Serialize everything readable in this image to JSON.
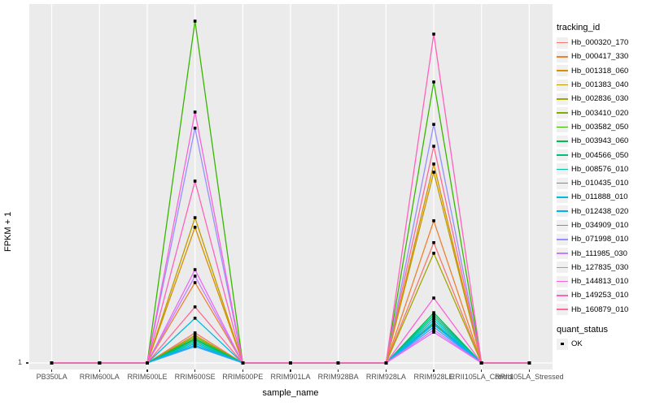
{
  "chart_data": {
    "type": "line",
    "title": "",
    "xlabel": "sample_name",
    "ylabel": "FPKM + 1",
    "y_ticks": [
      "1"
    ],
    "y_scale_note": "axis shows only tick '1' at baseline; series values are relative peak heights where 0 = baseline (FPKM+1 = 1) and 1 = tallest peak",
    "legend_position": "right",
    "grid": "white major gridlines on gray panel",
    "point_style": "black filled square at every sample (quant_status = OK)",
    "categories": [
      "PB350LA",
      "RRIM600LA",
      "RRIM600LE",
      "RRIM600SE",
      "RRIM600PE",
      "RRIM901LA",
      "RRIM928BA",
      "RRIM928LA",
      "RRIM928LE",
      "RRII105LA_Control",
      "RRII105LA_Stressed"
    ],
    "series": [
      {
        "name": "Hb_000320_170",
        "color": "#F8766D",
        "values": [
          0,
          0,
          0,
          0.088,
          0,
          0,
          0,
          0,
          0.352,
          0,
          0
        ]
      },
      {
        "name": "Hb_000417_330",
        "color": "#EA8331",
        "values": [
          0,
          0,
          0,
          0.235,
          0,
          0,
          0,
          0,
          0.416,
          0,
          0
        ]
      },
      {
        "name": "Hb_001318_060",
        "color": "#D89000",
        "values": [
          0,
          0,
          0,
          0.397,
          0,
          0,
          0,
          0,
          0.582,
          0,
          0
        ]
      },
      {
        "name": "Hb_001383_040",
        "color": "#C09B00",
        "values": [
          0,
          0,
          0,
          0.425,
          0,
          0,
          0,
          0,
          0.558,
          0,
          0
        ]
      },
      {
        "name": "Hb_002836_030",
        "color": "#A3A500",
        "values": [
          0,
          0,
          0,
          0.081,
          0,
          0,
          0,
          0,
          0.321,
          0,
          0
        ]
      },
      {
        "name": "Hb_003410_020",
        "color": "#7CAE00",
        "values": [
          0,
          0,
          0,
          0.076,
          0,
          0,
          0,
          0,
          0.116,
          0,
          0
        ]
      },
      {
        "name": "Hb_003582_050",
        "color": "#39B600",
        "values": [
          0,
          0,
          0,
          1.0,
          0,
          0,
          0,
          0,
          0.822,
          0,
          0
        ]
      },
      {
        "name": "Hb_003943_060",
        "color": "#00BB4E",
        "values": [
          0,
          0,
          0,
          0.071,
          0,
          0,
          0,
          0,
          0.147,
          0,
          0
        ]
      },
      {
        "name": "Hb_004566_050",
        "color": "#00BF7D",
        "values": [
          0,
          0,
          0,
          0.067,
          0,
          0,
          0,
          0,
          0.14,
          0,
          0
        ]
      },
      {
        "name": "Hb_008576_010",
        "color": "#00C1A3",
        "values": [
          0,
          0,
          0,
          0.062,
          0,
          0,
          0,
          0,
          0.133,
          0,
          0
        ]
      },
      {
        "name": "Hb_010435_010",
        "color": "#00BFC4",
        "values": [
          0,
          0,
          0,
          0.057,
          0,
          0,
          0,
          0,
          0.126,
          0,
          0
        ]
      },
      {
        "name": "Hb_011888_010",
        "color": "#00BAE0",
        "values": [
          0,
          0,
          0,
          0.131,
          0,
          0,
          0,
          0,
          0.119,
          0,
          0
        ]
      },
      {
        "name": "Hb_012438_020",
        "color": "#00B0F6",
        "values": [
          0,
          0,
          0,
          0.052,
          0,
          0,
          0,
          0,
          0.112,
          0,
          0
        ]
      },
      {
        "name": "Hb_034909_010",
        "color": "#35A2FF",
        "values": [
          0,
          0,
          0,
          0.048,
          0,
          0,
          0,
          0,
          0.105,
          0,
          0
        ]
      },
      {
        "name": "Hb_071998_010",
        "color": "#9590FF",
        "values": [
          0,
          0,
          0,
          0.687,
          0,
          0,
          0,
          0,
          0.698,
          0,
          0
        ]
      },
      {
        "name": "Hb_111985_030",
        "color": "#C77CFF",
        "values": [
          0,
          0,
          0,
          0.254,
          0,
          0,
          0,
          0,
          0.097,
          0,
          0
        ]
      },
      {
        "name": "Hb_127835_030",
        "color": "#E76BF3",
        "values": [
          0,
          0,
          0,
          0.273,
          0,
          0,
          0,
          0,
          0.09,
          0,
          0
        ]
      },
      {
        "name": "Hb_144813_010",
        "color": "#FA62DB",
        "values": [
          0,
          0,
          0,
          0.734,
          0,
          0,
          0,
          0,
          0.19,
          0,
          0
        ]
      },
      {
        "name": "Hb_149253_010",
        "color": "#FF62BC",
        "values": [
          0,
          0,
          0,
          0.532,
          0,
          0,
          0,
          0,
          0.962,
          0,
          0
        ]
      },
      {
        "name": "Hb_160879_010",
        "color": "#FF6A98",
        "values": [
          0,
          0,
          0,
          0.164,
          0,
          0,
          0,
          0,
          0.634,
          0,
          0
        ]
      }
    ]
  },
  "y_axis": {
    "title": "FPKM + 1",
    "tick_label": "1"
  },
  "x_axis": {
    "title": "sample_name"
  },
  "legend": {
    "tracking_title": "tracking_id",
    "quant_title": "quant_status",
    "quant_items": [
      {
        "label": "OK"
      }
    ]
  },
  "colors": {
    "panel_bg": "#EBEBEB",
    "gridline": "#FFFFFF",
    "axis_text": "#4D4D4D",
    "point": "#000000",
    "legend_key_bg": "#F0F0F0"
  }
}
